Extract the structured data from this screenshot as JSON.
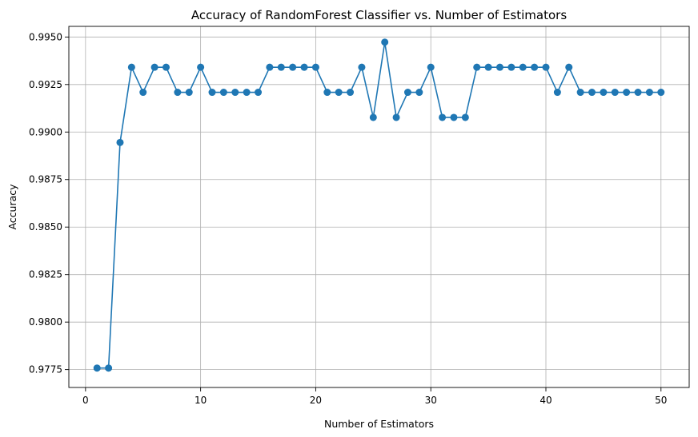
{
  "chart_data": {
    "type": "line",
    "title": "Accuracy of RandomForest Classifier vs. Number of Estimators",
    "xlabel": "Number of Estimators",
    "ylabel": "Accuracy",
    "xlim": [
      -1.45,
      52.45
    ],
    "ylim": [
      0.97656,
      0.99556
    ],
    "xticks": [
      0,
      10,
      20,
      30,
      40,
      50
    ],
    "xtick_labels": [
      "0",
      "10",
      "20",
      "30",
      "40",
      "50"
    ],
    "yticks": [
      0.9775,
      0.98,
      0.9825,
      0.985,
      0.9875,
      0.99,
      0.9925,
      0.995
    ],
    "ytick_labels": [
      "0.9775",
      "0.9800",
      "0.9825",
      "0.9850",
      "0.9875",
      "0.9900",
      "0.9925",
      "0.9950"
    ],
    "grid": true,
    "marker": "circle",
    "series": [
      {
        "color": "#1f77b4",
        "x": [
          1,
          2,
          3,
          4,
          5,
          6,
          7,
          8,
          9,
          10,
          11,
          12,
          13,
          14,
          15,
          16,
          17,
          18,
          19,
          20,
          21,
          22,
          23,
          24,
          25,
          26,
          27,
          28,
          29,
          30,
          31,
          32,
          33,
          34,
          35,
          36,
          37,
          38,
          39,
          40,
          41,
          42,
          43,
          44,
          45,
          46,
          47,
          48,
          49,
          50
        ],
        "values": [
          0.97758,
          0.97758,
          0.98945,
          0.99341,
          0.99209,
          0.99341,
          0.99341,
          0.99209,
          0.99209,
          0.99341,
          0.99209,
          0.99209,
          0.99209,
          0.99209,
          0.99209,
          0.99341,
          0.99341,
          0.99341,
          0.99341,
          0.99341,
          0.99209,
          0.99209,
          0.99209,
          0.99341,
          0.99077,
          0.99473,
          0.99077,
          0.99209,
          0.99209,
          0.99341,
          0.99077,
          0.99077,
          0.99077,
          0.99341,
          0.99341,
          0.99341,
          0.99341,
          0.99341,
          0.99341,
          0.99341,
          0.99209,
          0.99341,
          0.99209,
          0.99209,
          0.99209,
          0.99209,
          0.99209,
          0.99209,
          0.99209,
          0.99209
        ]
      }
    ]
  }
}
